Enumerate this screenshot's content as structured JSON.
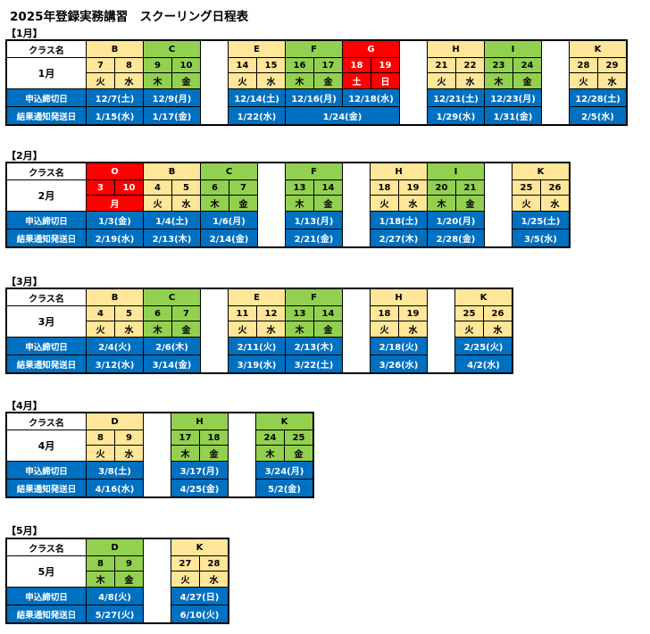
{
  "title": "2025年登録実務講習　スクーリング日程表",
  "row_labels": {
    "class": "クラス名",
    "deadline": "申込締切日",
    "notice": "結果通知発送日"
  },
  "months": [
    {
      "label": "【1月】",
      "month": "1月",
      "groups": [
        {
          "classes": [
            {
              "name": "B",
              "color": "yellow",
              "days": [
                "7",
                "8"
              ],
              "weekdays": [
                "火",
                "水"
              ],
              "deadline": "12/7(土)",
              "notice": "1/15(水)"
            },
            {
              "name": "C",
              "color": "green",
              "days": [
                "9",
                "10"
              ],
              "weekdays": [
                "木",
                "金"
              ],
              "deadline": "12/9(月)",
              "notice": "1/17(金)"
            }
          ]
        },
        {
          "classes": [
            {
              "name": "E",
              "color": "yellow",
              "days": [
                "14",
                "15"
              ],
              "weekdays": [
                "火",
                "水"
              ],
              "deadline": "12/14(土)",
              "notice": "1/22(水)"
            },
            {
              "name": "F",
              "color": "green",
              "days": [
                "16",
                "17"
              ],
              "weekdays": [
                "木",
                "金"
              ],
              "deadline": "12/16(月)"
            },
            {
              "name": "G",
              "color": "red",
              "days": [
                "18",
                "19"
              ],
              "weekdays": [
                "土",
                "日"
              ],
              "deadline": "12/18(水)"
            }
          ],
          "shared_notice": {
            "span": 2,
            "value": "1/24(金)"
          }
        },
        {
          "classes": [
            {
              "name": "H",
              "color": "yellow",
              "days": [
                "21",
                "22"
              ],
              "weekdays": [
                "火",
                "水"
              ],
              "deadline": "12/21(土)",
              "notice": "1/29(水)"
            },
            {
              "name": "I",
              "color": "green",
              "days": [
                "23",
                "24"
              ],
              "weekdays": [
                "木",
                "金"
              ],
              "deadline": "12/23(月)",
              "notice": "1/31(金)"
            }
          ]
        },
        {
          "classes": [
            {
              "name": "K",
              "color": "yellow",
              "days": [
                "28",
                "29"
              ],
              "weekdays": [
                "火",
                "水"
              ],
              "deadline": "12/28(土)",
              "notice": "2/5(水)"
            }
          ]
        }
      ]
    },
    {
      "label": "【2月】",
      "month": "2月",
      "groups": [
        {
          "classes": [
            {
              "name": "O",
              "color": "red",
              "days": [
                "3",
                "10"
              ],
              "weekdays": [
                "月"
              ],
              "deadline": "1/3(金)",
              "notice": "2/19(水)"
            },
            {
              "name": "B",
              "color": "yellow",
              "days": [
                "4",
                "5"
              ],
              "weekdays": [
                "火",
                "水"
              ],
              "deadline": "1/4(土)",
              "notice": "2/13(木)"
            },
            {
              "name": "C",
              "color": "green",
              "days": [
                "6",
                "7"
              ],
              "weekdays": [
                "木",
                "金"
              ],
              "deadline": "1/6(月)",
              "notice": "2/14(金)"
            }
          ]
        },
        {
          "classes": [
            {
              "name": "F",
              "color": "green",
              "days": [
                "13",
                "14"
              ],
              "weekdays": [
                "木",
                "金"
              ],
              "deadline": "1/13(月)",
              "notice": "2/21(金)"
            }
          ]
        },
        {
          "classes": [
            {
              "name": "H",
              "color": "yellow",
              "days": [
                "18",
                "19"
              ],
              "weekdays": [
                "火",
                "水"
              ],
              "deadline": "1/18(土)",
              "notice": "2/27(木)"
            },
            {
              "name": "I",
              "color": "green",
              "days": [
                "20",
                "21"
              ],
              "weekdays": [
                "木",
                "金"
              ],
              "deadline": "1/20(月)",
              "notice": "2/28(金)"
            }
          ]
        },
        {
          "classes": [
            {
              "name": "K",
              "color": "yellow",
              "days": [
                "25",
                "26"
              ],
              "weekdays": [
                "火",
                "水"
              ],
              "deadline": "1/25(土)",
              "notice": "3/5(水)"
            }
          ]
        }
      ]
    },
    {
      "label": "【3月】",
      "month": "3月",
      "groups": [
        {
          "classes": [
            {
              "name": "B",
              "color": "yellow",
              "days": [
                "4",
                "5"
              ],
              "weekdays": [
                "火",
                "水"
              ],
              "deadline": "2/4(火)",
              "notice": "3/12(水)"
            },
            {
              "name": "C",
              "color": "green",
              "days": [
                "6",
                "7"
              ],
              "weekdays": [
                "木",
                "金"
              ],
              "deadline": "2/6(木)",
              "notice": "3/14(金)"
            }
          ]
        },
        {
          "classes": [
            {
              "name": "E",
              "color": "yellow",
              "days": [
                "11",
                "12"
              ],
              "weekdays": [
                "火",
                "水"
              ],
              "deadline": "2/11(火)",
              "notice": "3/19(水)"
            },
            {
              "name": "F",
              "color": "green",
              "days": [
                "13",
                "14"
              ],
              "weekdays": [
                "木",
                "金"
              ],
              "deadline": "2/13(木)",
              "notice": "3/22(土)"
            }
          ]
        },
        {
          "classes": [
            {
              "name": "H",
              "color": "yellow",
              "days": [
                "18",
                "19"
              ],
              "weekdays": [
                "火",
                "水"
              ],
              "deadline": "2/18(火)",
              "notice": "3/26(水)"
            }
          ]
        },
        {
          "classes": [
            {
              "name": "K",
              "color": "yellow",
              "days": [
                "25",
                "26"
              ],
              "weekdays": [
                "火",
                "水"
              ],
              "deadline": "2/25(火)",
              "notice": "4/2(水)"
            }
          ]
        }
      ]
    },
    {
      "label": "【4月】",
      "month": "4月",
      "groups": [
        {
          "classes": [
            {
              "name": "D",
              "color": "yellow",
              "days": [
                "8",
                "9"
              ],
              "weekdays": [
                "火",
                "水"
              ],
              "deadline": "3/8(土)",
              "notice": "4/16(水)"
            }
          ]
        },
        {
          "classes": [
            {
              "name": "H",
              "color": "green",
              "days": [
                "17",
                "18"
              ],
              "weekdays": [
                "木",
                "金"
              ],
              "deadline": "3/17(月)",
              "notice": "4/25(金)"
            }
          ]
        },
        {
          "classes": [
            {
              "name": "K",
              "color": "green",
              "days": [
                "24",
                "25"
              ],
              "weekdays": [
                "木",
                "金"
              ],
              "deadline": "3/24(月)",
              "notice": "5/2(金)"
            }
          ]
        }
      ]
    },
    {
      "label": "【5月】",
      "month": "5月",
      "groups": [
        {
          "classes": [
            {
              "name": "D",
              "color": "green",
              "days": [
                "8",
                "9"
              ],
              "weekdays": [
                "木",
                "金"
              ],
              "deadline": "4/8(火)",
              "notice": "5/27(火)"
            }
          ]
        },
        {
          "classes": [
            {
              "name": "K",
              "color": "yellow",
              "days": [
                "27",
                "28"
              ],
              "weekdays": [
                "火",
                "水"
              ],
              "deadline": "4/27(日)",
              "notice": "6/10(火)"
            }
          ]
        }
      ]
    }
  ],
  "colors": {
    "yellow": "#ffe699",
    "green": "#92d050",
    "red": "#ff0000",
    "blue": "#0070c0"
  }
}
